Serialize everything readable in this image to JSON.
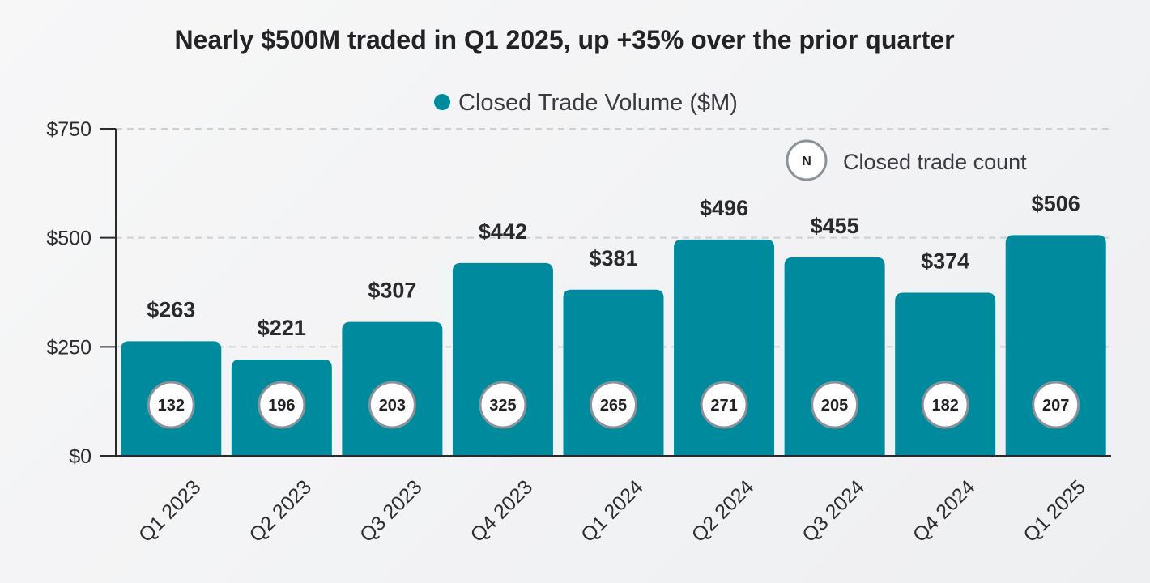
{
  "chart_data": {
    "type": "bar",
    "title": "Nearly $500M traded in Q1 2025, up +35% over the prior quarter",
    "categories": [
      "Q1 2023",
      "Q2 2023",
      "Q3 2023",
      "Q4 2023",
      "Q1 2024",
      "Q2 2024",
      "Q3 2024",
      "Q4 2024",
      "Q1 2025"
    ],
    "series": [
      {
        "name": "Closed Trade Volume ($M)",
        "values": [
          263,
          221,
          307,
          442,
          381,
          496,
          455,
          374,
          506
        ],
        "value_labels": [
          "$263",
          "$221",
          "$307",
          "$442",
          "$381",
          "$496",
          "$455",
          "$374",
          "$506"
        ],
        "color": "#008a9e"
      }
    ],
    "trade_counts": {
      "name": "Closed trade count",
      "symbol": "N",
      "values": [
        132,
        196,
        203,
        325,
        265,
        271,
        205,
        182,
        207
      ]
    },
    "ylim": [
      0,
      750
    ],
    "yticks": [
      0,
      250,
      500,
      750
    ],
    "ytick_labels": [
      "$0",
      "$250",
      "$500",
      "$750"
    ],
    "xlabel": "",
    "ylabel": "",
    "grid": true,
    "legend_position": "top-center",
    "colors": {
      "bar": "#008a9e",
      "grid": "#cfcfd3",
      "axis": "#2a2a2e",
      "badge_border": "#8a9199",
      "badge_fill": "#ffffff"
    }
  }
}
